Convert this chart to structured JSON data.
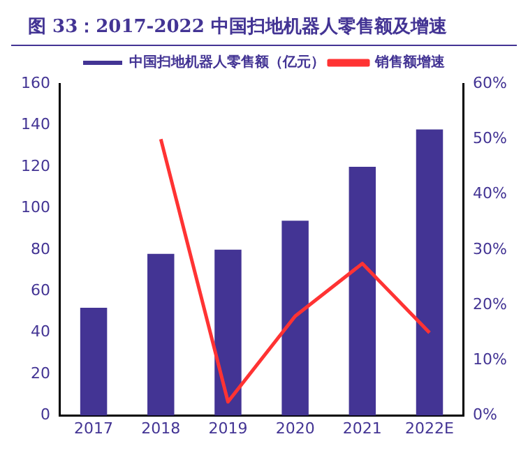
{
  "chart_data": {
    "type": "bar",
    "title": "图 33：2017-2022 中国扫地机器人零售额及增速",
    "categories": [
      "2017",
      "2018",
      "2019",
      "2020",
      "2021",
      "2022E"
    ],
    "series": [
      {
        "name": "中国扫地机器人零售额（亿元）",
        "color": "#433494",
        "values": [
          52,
          78,
          80,
          94,
          120,
          138
        ]
      },
      {
        "name": "销售额增速",
        "type": "line",
        "axis": "y2",
        "color": "#ff3333",
        "marker": "none",
        "values": [
          null,
          50,
          2.5,
          18,
          27.5,
          15
        ]
      }
    ],
    "ylim": [
      0,
      160
    ],
    "yticks": [
      0,
      20,
      40,
      60,
      80,
      100,
      120,
      140,
      160
    ],
    "y2lim": [
      0,
      60
    ],
    "y2ticks": [
      {
        "value": 0,
        "label": "0%"
      },
      {
        "value": 10,
        "label": "10%"
      },
      {
        "value": 20,
        "label": "20%"
      },
      {
        "value": 30,
        "label": "30%"
      },
      {
        "value": 40,
        "label": "40%"
      },
      {
        "value": 50,
        "label": "50%"
      },
      {
        "value": 60,
        "label": "60%"
      }
    ],
    "grid": false,
    "legend": "top"
  }
}
